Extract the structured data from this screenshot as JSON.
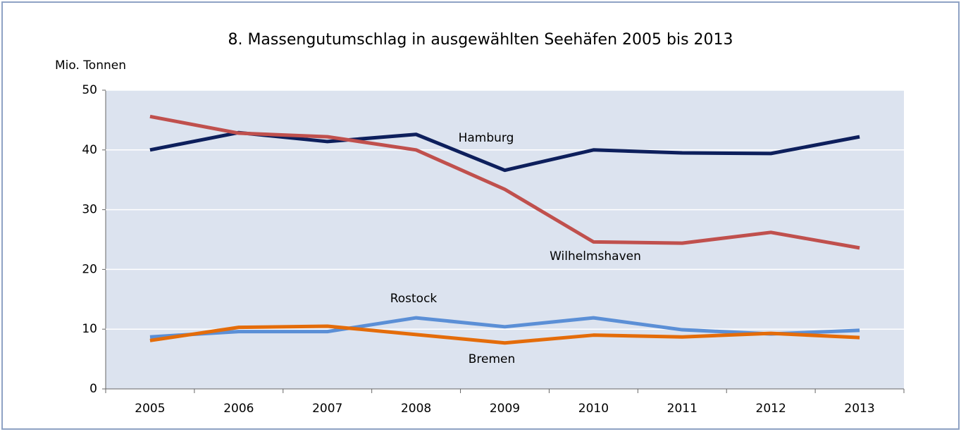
{
  "chart_data": {
    "type": "line",
    "title": "8. Massengutumschlag in ausgewählten Seehäfen 2005 bis 2013",
    "y_label": "Mio. Tonnen",
    "categories": [
      "2005",
      "2006",
      "2007",
      "2008",
      "2009",
      "2010",
      "2011",
      "2012",
      "2013"
    ],
    "series": [
      {
        "name": "Hamburg",
        "color": "#0d1f5c",
        "values": [
          40.0,
          42.9,
          41.4,
          42.6,
          36.6,
          40.0,
          39.5,
          39.4,
          42.2
        ]
      },
      {
        "name": "Wilhelmshaven",
        "color": "#c0504d",
        "values": [
          45.6,
          42.8,
          42.2,
          40.0,
          33.4,
          24.6,
          24.4,
          26.2,
          23.6
        ]
      },
      {
        "name": "Rostock",
        "color": "#5b8fd6",
        "values": [
          8.7,
          9.6,
          9.6,
          11.9,
          10.4,
          11.9,
          9.9,
          9.2,
          9.8
        ]
      },
      {
        "name": "Bremen",
        "color": "#e46c0a",
        "values": [
          8.1,
          10.3,
          10.5,
          9.1,
          7.7,
          9.0,
          8.7,
          9.3,
          8.6
        ]
      }
    ],
    "ylim": [
      0,
      50
    ],
    "yticks": [
      0,
      10,
      20,
      30,
      40,
      50
    ],
    "grid": true
  }
}
